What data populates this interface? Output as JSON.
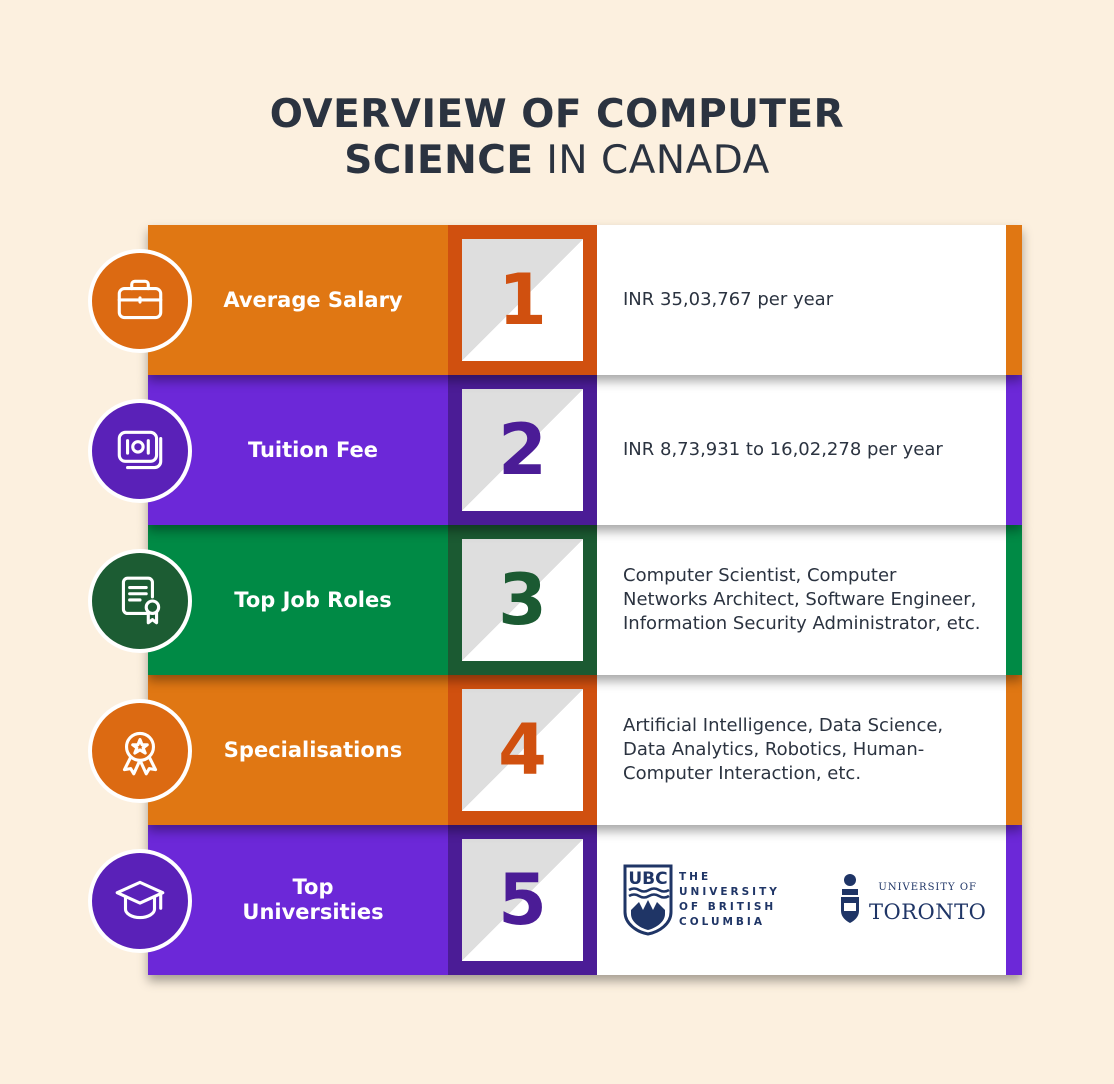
{
  "title": {
    "line1": "OVERVIEW OF COMPUTER",
    "line2_bold": "SCIENCE",
    "line2_light": "IN CANADA"
  },
  "rows": [
    {
      "label": "Average Salary",
      "number": "1",
      "content": "INR 35,03,767 per year",
      "icon": "briefcase-icon",
      "band": "#E07713",
      "frame": "#D0500F",
      "circle": "#DC6A12"
    },
    {
      "label": "Tuition Fee",
      "number": "2",
      "content": "INR 8,73,931 to 16,02,278 per year",
      "icon": "money-icon",
      "band": "#6C28D8",
      "frame": "#4B1C96",
      "circle": "#5A21B8"
    },
    {
      "label": "Top Job Roles",
      "number": "3",
      "content": "Computer Scientist, Computer Networks Architect, Software Engineer, Information Security Administrator, etc.",
      "icon": "certificate-icon",
      "band": "#008A45",
      "frame": "#1B5A32",
      "circle": "#1C5C33"
    },
    {
      "label": "Specialisations",
      "number": "4",
      "content": "Artificial Intelligence, Data Science, Data Analytics, Robotics, Human-Computer Interaction, etc.",
      "icon": "award-icon",
      "band": "#E07713",
      "frame": "#D0500F",
      "circle": "#DC6A12"
    },
    {
      "label": "Top Universities",
      "number": "5",
      "icon": "graduation-cap-icon",
      "band": "#6C28D8",
      "frame": "#4B1C96",
      "circle": "#5A21B8",
      "universities": [
        {
          "logo_text": "UBC",
          "name": "THE UNIVERSITY OF BRITISH COLUMBIA"
        },
        {
          "small": "UNIVERSITY OF",
          "big": "TORONTO"
        }
      ]
    }
  ]
}
